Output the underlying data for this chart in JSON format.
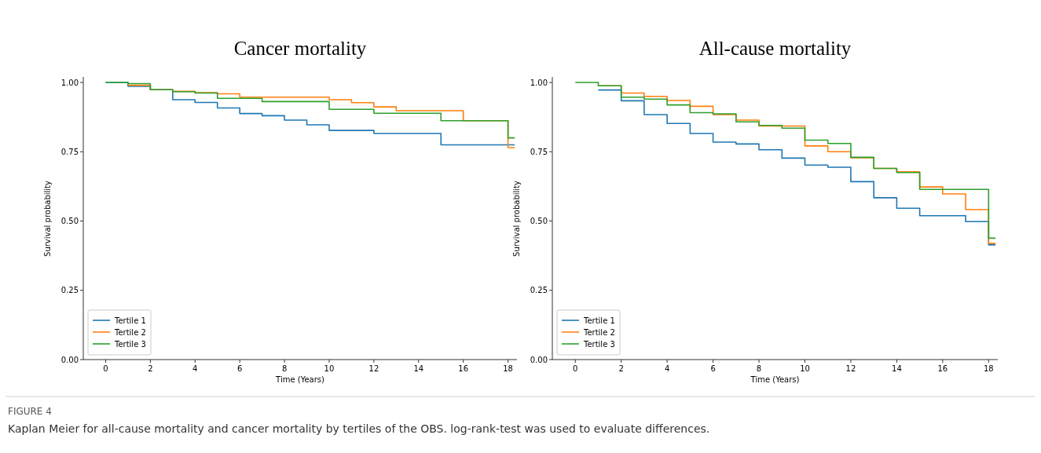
{
  "chart_data": [
    {
      "type": "step",
      "title": "Cancer mortality",
      "xlabel": "Time (Years)",
      "ylabel": "Survival probability",
      "xlim": [
        -1,
        18.4
      ],
      "ylim": [
        0,
        1.02
      ],
      "xticks": [
        0,
        2,
        4,
        6,
        8,
        10,
        12,
        14,
        16,
        18
      ],
      "yticks": [
        {
          "value": 0,
          "label": "0.00"
        },
        {
          "value": 0.25,
          "label": "0.25"
        },
        {
          "value": 0.5,
          "label": "0.50"
        },
        {
          "value": 0.75,
          "label": "0.75"
        },
        {
          "value": 1,
          "label": "1.00"
        }
      ],
      "legend": "bottom left",
      "grid": false,
      "x": [
        0,
        1,
        2,
        3,
        4,
        5,
        6,
        7,
        8,
        9,
        10,
        11,
        12,
        13,
        14,
        15,
        16,
        17,
        18,
        18.3
      ],
      "series": [
        {
          "name": "Tertile 1",
          "color": "#1f77b4",
          "values": [
            1.0,
            0.986,
            0.974,
            0.938,
            0.928,
            0.908,
            0.888,
            0.88,
            0.864,
            0.847,
            0.827,
            0.827,
            0.816,
            0.816,
            0.816,
            0.775,
            0.775,
            0.775,
            0.775,
            0.775
          ]
        },
        {
          "name": "Tertile 2",
          "color": "#ff7f0e",
          "values": [
            null,
            0.99,
            0.974,
            0.968,
            0.963,
            0.959,
            0.947,
            0.947,
            0.947,
            0.947,
            0.938,
            0.927,
            0.912,
            0.898,
            0.898,
            0.898,
            0.862,
            0.862,
            0.765,
            0.765
          ]
        },
        {
          "name": "Tertile 3",
          "color": "#2ca02c",
          "values": [
            1.0,
            0.996,
            0.974,
            0.967,
            0.962,
            0.943,
            0.943,
            0.931,
            0.931,
            0.931,
            0.903,
            0.903,
            0.889,
            0.889,
            0.889,
            0.862,
            0.862,
            0.862,
            0.8,
            0.8
          ]
        }
      ],
      "annotations": [
        "FIGURE 4",
        "Kaplan Meier for all-cause mortality and cancer mortality by tertiles of the OBS. log-rank-test was used to evaluate differences."
      ]
    },
    {
      "type": "step",
      "title": "All-cause mortality",
      "xlabel": "Time (Years)",
      "ylabel": "Survival probability",
      "xlim": [
        -1,
        18.4
      ],
      "ylim": [
        0,
        1.02
      ],
      "xticks": [
        0,
        2,
        4,
        6,
        8,
        10,
        12,
        14,
        16,
        18
      ],
      "yticks": [
        {
          "value": 0,
          "label": "0.00"
        },
        {
          "value": 0.25,
          "label": "0.25"
        },
        {
          "value": 0.5,
          "label": "0.50"
        },
        {
          "value": 0.75,
          "label": "0.75"
        },
        {
          "value": 1,
          "label": "1.00"
        }
      ],
      "legend": "bottom left",
      "grid": false,
      "x": [
        0,
        1,
        2,
        3,
        4,
        5,
        6,
        7,
        8,
        9,
        10,
        11,
        12,
        13,
        14,
        15,
        16,
        17,
        18,
        18.3
      ],
      "series": [
        {
          "name": "Tertile 1",
          "color": "#1f77b4",
          "values": [
            null,
            0.973,
            0.934,
            0.884,
            0.852,
            0.816,
            0.785,
            0.778,
            0.757,
            0.727,
            0.702,
            0.694,
            0.642,
            0.584,
            0.546,
            0.519,
            0.519,
            0.498,
            0.414,
            0.414
          ]
        },
        {
          "name": "Tertile 2",
          "color": "#ff7f0e",
          "values": [
            null,
            0.988,
            0.962,
            0.95,
            0.935,
            0.914,
            0.884,
            0.864,
            0.843,
            0.843,
            0.771,
            0.75,
            0.728,
            0.69,
            0.678,
            0.623,
            0.598,
            0.541,
            0.419,
            0.419
          ]
        },
        {
          "name": "Tertile 3",
          "color": "#2ca02c",
          "values": [
            1.0,
            0.988,
            0.947,
            0.94,
            0.919,
            0.891,
            0.887,
            0.858,
            0.845,
            0.835,
            0.792,
            0.78,
            0.73,
            0.69,
            0.675,
            0.614,
            0.614,
            0.614,
            0.438,
            0.438
          ]
        }
      ]
    }
  ]
}
